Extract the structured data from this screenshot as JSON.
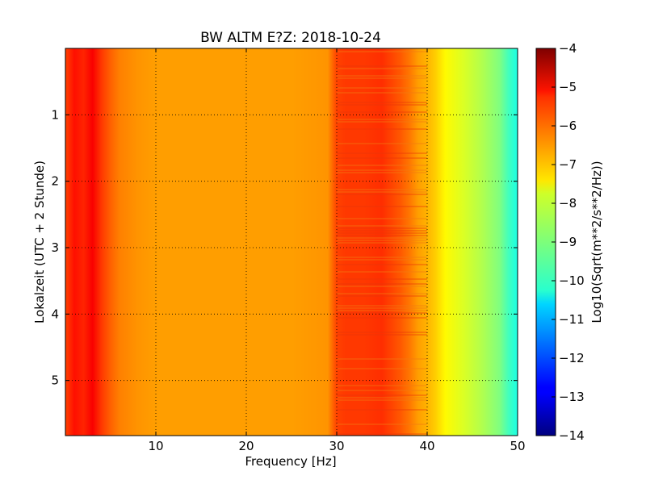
{
  "chart_data": {
    "type": "heatmap",
    "title": "BW ALTM E?Z: 2018-10-24",
    "xlabel": "Frequency [Hz]",
    "ylabel": "Lokalzeit (UTC + 2 Stunde)",
    "xlim": [
      0,
      50
    ],
    "ylim": [
      5.83,
      0
    ],
    "y_inverted": true,
    "x_ticks": [
      10,
      20,
      30,
      40,
      50
    ],
    "x_tick_labels": [
      "10",
      "20",
      "30",
      "40",
      "50"
    ],
    "y_ticks": [
      1,
      2,
      3,
      4,
      5
    ],
    "y_tick_labels": [
      "1",
      "2",
      "3",
      "4",
      "5"
    ],
    "grid": true,
    "colorscale": "jet",
    "colorbar": {
      "label": "Log10(Sqrt(m**2/s**2/Hz))",
      "range": [
        -14,
        -4
      ],
      "ticks": [
        -4,
        -5,
        -6,
        -7,
        -8,
        -9,
        -10,
        -11,
        -12,
        -13,
        -14
      ],
      "tick_labels": [
        "−4",
        "−5",
        "−6",
        "−7",
        "−8",
        "−9",
        "−10",
        "−11",
        "−12",
        "−13",
        "−14"
      ]
    },
    "frequency_profile": {
      "frequency_hz": [
        0,
        1,
        2,
        3,
        4,
        5,
        6,
        7,
        8,
        10,
        15,
        20,
        25,
        29,
        30,
        31,
        33,
        35,
        36,
        37,
        38,
        39,
        40,
        41,
        42,
        44,
        46,
        48,
        49,
        50
      ],
      "log10_amplitude": [
        -5.9,
        -5.4,
        -5.6,
        -5.2,
        -5.8,
        -6.2,
        -6.5,
        -6.6,
        -6.7,
        -6.8,
        -6.8,
        -6.8,
        -6.8,
        -6.7,
        -5.9,
        -5.8,
        -5.8,
        -5.7,
        -5.9,
        -6.1,
        -6.4,
        -6.8,
        -7.0,
        -7.3,
        -7.7,
        -8.1,
        -8.5,
        -9.0,
        -9.6,
        -10.0
      ]
    }
  }
}
